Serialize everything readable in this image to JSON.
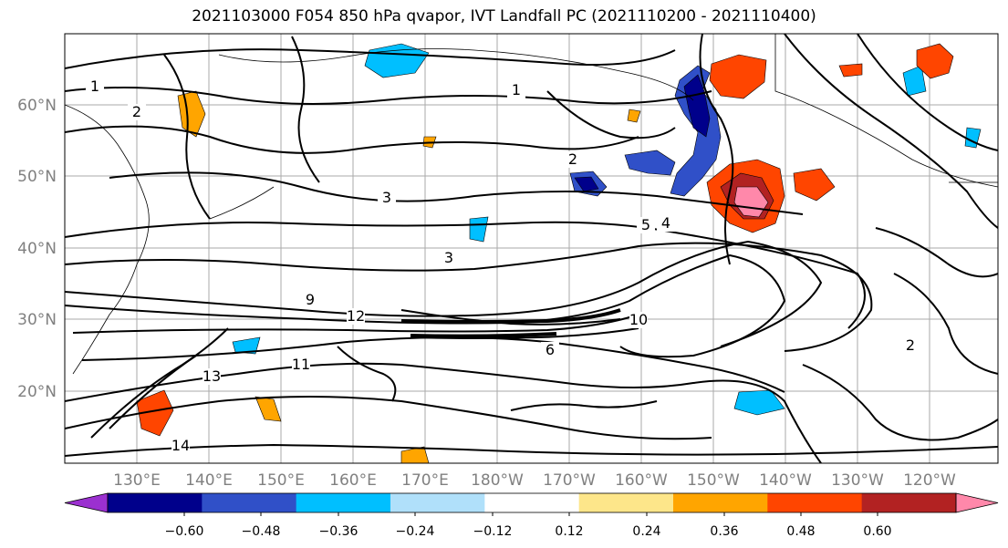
{
  "title": "2021103000 F054 850 hPa qvapor, IVT Landfall PC (2021110200 - 2021110400)",
  "map": {
    "lat_labels": [
      "60°N",
      "50°N",
      "40°N",
      "30°N",
      "20°N"
    ],
    "lon_labels": [
      "130°E",
      "140°E",
      "150°E",
      "160°E",
      "170°E",
      "180°W",
      "170°W",
      "160°W",
      "150°W",
      "140°W",
      "130°W",
      "120°W"
    ],
    "contour_labels": [
      "1",
      "2",
      "3",
      "5",
      "4",
      "9",
      "10",
      "11",
      "12",
      "13",
      "14",
      "2",
      "1",
      "3",
      "6",
      "2"
    ]
  },
  "colorbar": {
    "ticks": [
      "−0.60",
      "−0.48",
      "−0.36",
      "−0.24",
      "−0.12",
      "0.12",
      "0.24",
      "0.36",
      "0.48",
      "0.60"
    ],
    "colors": [
      "#9b30d0",
      "#00008b",
      "#3050c8",
      "#00bfff",
      "#b0e0fa",
      "#ffffff",
      "#fde68a",
      "#ffa500",
      "#ff4500",
      "#b22222",
      "#ff88aa"
    ]
  }
}
